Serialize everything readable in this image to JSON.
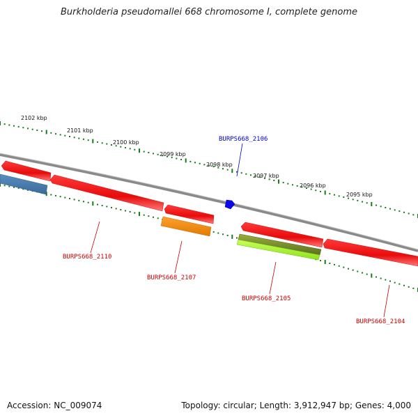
{
  "title": "Burkholderia pseudomallei 668 chromosome I, complete genome",
  "scale_labels": [
    "2102 kbp",
    "2101 kbp",
    "2100 kbp",
    "2099 kbp",
    "2098 kbp",
    "2097 kbp",
    "2096 kbp",
    "2095 kbp"
  ],
  "genes": {
    "g2106": "BURPS668_2106",
    "g2110": "BURPS668_2110",
    "g2107": "BURPS668_2107",
    "g2105": "BURPS668_2105",
    "g2104": "BURPS668_2104"
  },
  "colors": {
    "forward_gene": "#ee1111",
    "label_red": "#cc0000",
    "label_blue": "#0000cc",
    "tick_green": "#1a7a1a",
    "backbone": "#888888"
  },
  "footer": {
    "accession": "Accession: NC_009074",
    "summary": "Topology: circular; Length: 3,912,947 bp; Genes: 4,000"
  }
}
